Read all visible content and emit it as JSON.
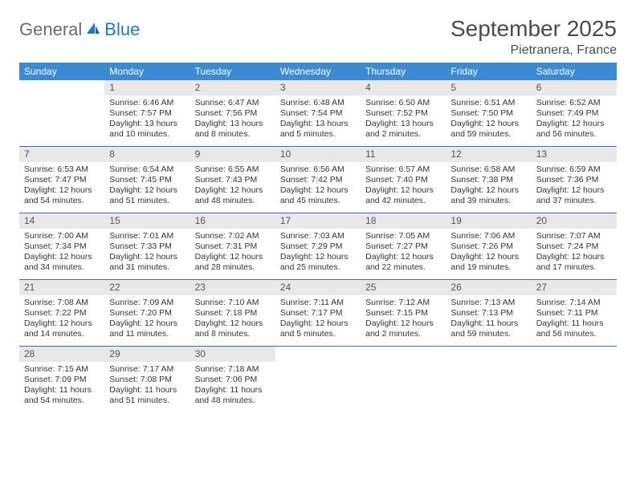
{
  "brand": {
    "part1": "General",
    "part2": "Blue"
  },
  "title": "September 2025",
  "location": "Pietranera, France",
  "colors": {
    "header_bg": "#3b8bd4",
    "header_text": "#ffffff",
    "daynum_bg": "#e8e8e8",
    "rule": "#3b6fa0",
    "logo_grey": "#6b6b6b",
    "logo_blue": "#2176c7"
  },
  "weekdays": [
    "Sunday",
    "Monday",
    "Tuesday",
    "Wednesday",
    "Thursday",
    "Friday",
    "Saturday"
  ],
  "weeks": [
    [
      null,
      {
        "n": "1",
        "sr": "Sunrise: 6:46 AM",
        "ss": "Sunset: 7:57 PM",
        "d1": "Daylight: 13 hours",
        "d2": "and 10 minutes."
      },
      {
        "n": "2",
        "sr": "Sunrise: 6:47 AM",
        "ss": "Sunset: 7:56 PM",
        "d1": "Daylight: 13 hours",
        "d2": "and 8 minutes."
      },
      {
        "n": "3",
        "sr": "Sunrise: 6:48 AM",
        "ss": "Sunset: 7:54 PM",
        "d1": "Daylight: 13 hours",
        "d2": "and 5 minutes."
      },
      {
        "n": "4",
        "sr": "Sunrise: 6:50 AM",
        "ss": "Sunset: 7:52 PM",
        "d1": "Daylight: 13 hours",
        "d2": "and 2 minutes."
      },
      {
        "n": "5",
        "sr": "Sunrise: 6:51 AM",
        "ss": "Sunset: 7:50 PM",
        "d1": "Daylight: 12 hours",
        "d2": "and 59 minutes."
      },
      {
        "n": "6",
        "sr": "Sunrise: 6:52 AM",
        "ss": "Sunset: 7:49 PM",
        "d1": "Daylight: 12 hours",
        "d2": "and 56 minutes."
      }
    ],
    [
      {
        "n": "7",
        "sr": "Sunrise: 6:53 AM",
        "ss": "Sunset: 7:47 PM",
        "d1": "Daylight: 12 hours",
        "d2": "and 54 minutes."
      },
      {
        "n": "8",
        "sr": "Sunrise: 6:54 AM",
        "ss": "Sunset: 7:45 PM",
        "d1": "Daylight: 12 hours",
        "d2": "and 51 minutes."
      },
      {
        "n": "9",
        "sr": "Sunrise: 6:55 AM",
        "ss": "Sunset: 7:43 PM",
        "d1": "Daylight: 12 hours",
        "d2": "and 48 minutes."
      },
      {
        "n": "10",
        "sr": "Sunrise: 6:56 AM",
        "ss": "Sunset: 7:42 PM",
        "d1": "Daylight: 12 hours",
        "d2": "and 45 minutes."
      },
      {
        "n": "11",
        "sr": "Sunrise: 6:57 AM",
        "ss": "Sunset: 7:40 PM",
        "d1": "Daylight: 12 hours",
        "d2": "and 42 minutes."
      },
      {
        "n": "12",
        "sr": "Sunrise: 6:58 AM",
        "ss": "Sunset: 7:38 PM",
        "d1": "Daylight: 12 hours",
        "d2": "and 39 minutes."
      },
      {
        "n": "13",
        "sr": "Sunrise: 6:59 AM",
        "ss": "Sunset: 7:36 PM",
        "d1": "Daylight: 12 hours",
        "d2": "and 37 minutes."
      }
    ],
    [
      {
        "n": "14",
        "sr": "Sunrise: 7:00 AM",
        "ss": "Sunset: 7:34 PM",
        "d1": "Daylight: 12 hours",
        "d2": "and 34 minutes."
      },
      {
        "n": "15",
        "sr": "Sunrise: 7:01 AM",
        "ss": "Sunset: 7:33 PM",
        "d1": "Daylight: 12 hours",
        "d2": "and 31 minutes."
      },
      {
        "n": "16",
        "sr": "Sunrise: 7:02 AM",
        "ss": "Sunset: 7:31 PM",
        "d1": "Daylight: 12 hours",
        "d2": "and 28 minutes."
      },
      {
        "n": "17",
        "sr": "Sunrise: 7:03 AM",
        "ss": "Sunset: 7:29 PM",
        "d1": "Daylight: 12 hours",
        "d2": "and 25 minutes."
      },
      {
        "n": "18",
        "sr": "Sunrise: 7:05 AM",
        "ss": "Sunset: 7:27 PM",
        "d1": "Daylight: 12 hours",
        "d2": "and 22 minutes."
      },
      {
        "n": "19",
        "sr": "Sunrise: 7:06 AM",
        "ss": "Sunset: 7:26 PM",
        "d1": "Daylight: 12 hours",
        "d2": "and 19 minutes."
      },
      {
        "n": "20",
        "sr": "Sunrise: 7:07 AM",
        "ss": "Sunset: 7:24 PM",
        "d1": "Daylight: 12 hours",
        "d2": "and 17 minutes."
      }
    ],
    [
      {
        "n": "21",
        "sr": "Sunrise: 7:08 AM",
        "ss": "Sunset: 7:22 PM",
        "d1": "Daylight: 12 hours",
        "d2": "and 14 minutes."
      },
      {
        "n": "22",
        "sr": "Sunrise: 7:09 AM",
        "ss": "Sunset: 7:20 PM",
        "d1": "Daylight: 12 hours",
        "d2": "and 11 minutes."
      },
      {
        "n": "23",
        "sr": "Sunrise: 7:10 AM",
        "ss": "Sunset: 7:18 PM",
        "d1": "Daylight: 12 hours",
        "d2": "and 8 minutes."
      },
      {
        "n": "24",
        "sr": "Sunrise: 7:11 AM",
        "ss": "Sunset: 7:17 PM",
        "d1": "Daylight: 12 hours",
        "d2": "and 5 minutes."
      },
      {
        "n": "25",
        "sr": "Sunrise: 7:12 AM",
        "ss": "Sunset: 7:15 PM",
        "d1": "Daylight: 12 hours",
        "d2": "and 2 minutes."
      },
      {
        "n": "26",
        "sr": "Sunrise: 7:13 AM",
        "ss": "Sunset: 7:13 PM",
        "d1": "Daylight: 11 hours",
        "d2": "and 59 minutes."
      },
      {
        "n": "27",
        "sr": "Sunrise: 7:14 AM",
        "ss": "Sunset: 7:11 PM",
        "d1": "Daylight: 11 hours",
        "d2": "and 56 minutes."
      }
    ],
    [
      {
        "n": "28",
        "sr": "Sunrise: 7:15 AM",
        "ss": "Sunset: 7:09 PM",
        "d1": "Daylight: 11 hours",
        "d2": "and 54 minutes."
      },
      {
        "n": "29",
        "sr": "Sunrise: 7:17 AM",
        "ss": "Sunset: 7:08 PM",
        "d1": "Daylight: 11 hours",
        "d2": "and 51 minutes."
      },
      {
        "n": "30",
        "sr": "Sunrise: 7:18 AM",
        "ss": "Sunset: 7:06 PM",
        "d1": "Daylight: 11 hours",
        "d2": "and 48 minutes."
      },
      null,
      null,
      null,
      null
    ]
  ]
}
